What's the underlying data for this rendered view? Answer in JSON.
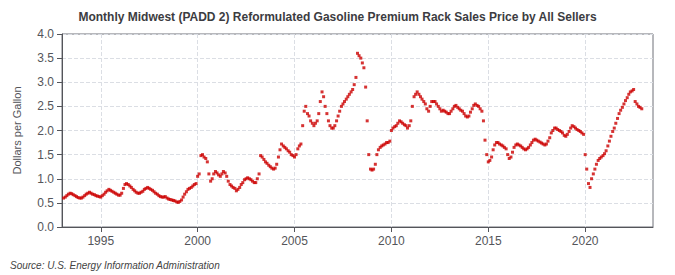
{
  "chart_data": {
    "type": "scatter",
    "title": "Monthly Midwest (PADD 2) Reformulated Gasoline Premium Rack Sales Price by All Sellers",
    "ylabel": "Dollars per Gallon",
    "annotation": "Source: U.S. Energy Information Administration",
    "color": "#CC0000",
    "marker": "square",
    "grid": true,
    "xlim": [
      1993.0,
      2023.5
    ],
    "ylim": [
      0.0,
      4.0
    ],
    "xticks": [
      1995,
      2000,
      2005,
      2010,
      2015,
      2020
    ],
    "yticks": [
      {
        "value": 0.0,
        "label": "0.0"
      },
      0.5,
      {
        "value": 1.0,
        "label": "1.0"
      },
      1.5,
      {
        "value": 2.0,
        "label": "2.0"
      },
      2.5,
      {
        "value": 3.0,
        "label": "3.0"
      },
      3.5,
      {
        "value": 4.0,
        "label": "4.0"
      }
    ],
    "x": [
      1993.08,
      1993.17,
      1993.25,
      1993.33,
      1993.42,
      1993.5,
      1993.58,
      1993.67,
      1993.75,
      1993.83,
      1993.92,
      1994.0,
      1994.08,
      1994.17,
      1994.25,
      1994.33,
      1994.42,
      1994.5,
      1994.58,
      1994.67,
      1994.75,
      1994.83,
      1994.92,
      1995.0,
      1995.08,
      1995.17,
      1995.25,
      1995.33,
      1995.42,
      1995.5,
      1995.58,
      1995.67,
      1995.75,
      1995.83,
      1995.92,
      1996.0,
      1996.08,
      1996.17,
      1996.25,
      1996.33,
      1996.42,
      1996.5,
      1996.58,
      1996.67,
      1996.75,
      1996.83,
      1996.92,
      1997.0,
      1997.08,
      1997.17,
      1997.25,
      1997.33,
      1997.42,
      1997.5,
      1997.58,
      1997.67,
      1997.75,
      1997.83,
      1997.92,
      1998.0,
      1998.08,
      1998.17,
      1998.25,
      1998.33,
      1998.42,
      1998.5,
      1998.58,
      1998.67,
      1998.75,
      1998.83,
      1998.92,
      1999.0,
      1999.08,
      1999.17,
      1999.25,
      1999.33,
      1999.42,
      1999.5,
      1999.58,
      1999.67,
      1999.75,
      1999.83,
      1999.92,
      2000.0,
      2000.08,
      2000.17,
      2000.25,
      2000.33,
      2000.42,
      2000.5,
      2000.58,
      2000.67,
      2000.75,
      2000.83,
      2000.92,
      2001.0,
      2001.08,
      2001.17,
      2001.25,
      2001.33,
      2001.42,
      2001.5,
      2001.58,
      2001.67,
      2001.75,
      2001.83,
      2001.92,
      2002.0,
      2002.08,
      2002.17,
      2002.25,
      2002.33,
      2002.42,
      2002.5,
      2002.58,
      2002.67,
      2002.75,
      2002.83,
      2002.92,
      2003.0,
      2003.08,
      2003.17,
      2003.25,
      2003.33,
      2003.42,
      2003.5,
      2003.58,
      2003.67,
      2003.75,
      2003.83,
      2003.92,
      2004.0,
      2004.08,
      2004.17,
      2004.25,
      2004.33,
      2004.42,
      2004.5,
      2004.58,
      2004.67,
      2004.75,
      2004.83,
      2004.92,
      2005.0,
      2005.08,
      2005.17,
      2005.25,
      2005.33,
      2005.42,
      2005.5,
      2005.58,
      2005.67,
      2005.75,
      2005.83,
      2005.92,
      2006.0,
      2006.08,
      2006.17,
      2006.25,
      2006.33,
      2006.42,
      2006.5,
      2006.58,
      2006.67,
      2006.75,
      2006.83,
      2006.92,
      2007.0,
      2007.08,
      2007.17,
      2007.25,
      2007.33,
      2007.42,
      2007.5,
      2007.58,
      2007.67,
      2007.75,
      2007.83,
      2007.92,
      2008.0,
      2008.08,
      2008.17,
      2008.25,
      2008.33,
      2008.42,
      2008.5,
      2008.58,
      2008.67,
      2008.75,
      2008.83,
      2008.92,
      2009.0,
      2009.08,
      2009.17,
      2009.25,
      2009.33,
      2009.42,
      2009.5,
      2009.58,
      2009.67,
      2009.75,
      2009.83,
      2009.92,
      2010.0,
      2010.08,
      2010.17,
      2010.25,
      2010.33,
      2010.42,
      2010.5,
      2010.58,
      2010.67,
      2010.75,
      2010.83,
      2010.92,
      2011.0,
      2011.08,
      2011.17,
      2011.25,
      2011.33,
      2011.42,
      2011.5,
      2011.58,
      2011.67,
      2011.75,
      2011.83,
      2011.92,
      2012.0,
      2012.08,
      2012.17,
      2012.25,
      2012.33,
      2012.42,
      2012.5,
      2012.58,
      2012.67,
      2012.75,
      2012.83,
      2012.92,
      2013.0,
      2013.08,
      2013.17,
      2013.25,
      2013.33,
      2013.42,
      2013.5,
      2013.58,
      2013.67,
      2013.75,
      2013.83,
      2013.92,
      2014.0,
      2014.08,
      2014.17,
      2014.25,
      2014.33,
      2014.42,
      2014.5,
      2014.58,
      2014.67,
      2014.75,
      2014.83,
      2014.92,
      2015.0,
      2015.08,
      2015.17,
      2015.25,
      2015.33,
      2015.42,
      2015.5,
      2015.58,
      2015.67,
      2015.75,
      2015.83,
      2015.92,
      2016.0,
      2016.08,
      2016.17,
      2016.25,
      2016.33,
      2016.42,
      2016.5,
      2016.58,
      2016.67,
      2016.75,
      2016.83,
      2016.92,
      2017.0,
      2017.08,
      2017.17,
      2017.25,
      2017.33,
      2017.42,
      2017.5,
      2017.58,
      2017.67,
      2017.75,
      2017.83,
      2017.92,
      2018.0,
      2018.08,
      2018.17,
      2018.25,
      2018.33,
      2018.42,
      2018.5,
      2018.58,
      2018.67,
      2018.75,
      2018.83,
      2018.92,
      2019.0,
      2019.08,
      2019.17,
      2019.25,
      2019.33,
      2019.42,
      2019.5,
      2019.58,
      2019.67,
      2019.75,
      2019.83,
      2019.92,
      2020.0,
      2020.08,
      2020.17,
      2020.25,
      2020.33,
      2020.42,
      2020.5,
      2020.58,
      2020.67,
      2020.75,
      2020.83,
      2020.92,
      2021.0,
      2021.08,
      2021.17,
      2021.25,
      2021.33,
      2021.42,
      2021.5,
      2021.58,
      2021.67,
      2021.75,
      2021.83,
      2021.92,
      2022.0,
      2022.08,
      2022.17,
      2022.25,
      2022.33,
      2022.42,
      2022.5,
      2022.58,
      2022.67,
      2022.75,
      2022.83,
      2022.92
    ],
    "values": [
      0.6,
      0.62,
      0.65,
      0.68,
      0.7,
      0.69,
      0.67,
      0.65,
      0.63,
      0.61,
      0.6,
      0.6,
      0.62,
      0.65,
      0.68,
      0.7,
      0.72,
      0.7,
      0.68,
      0.67,
      0.65,
      0.64,
      0.63,
      0.62,
      0.65,
      0.68,
      0.72,
      0.75,
      0.78,
      0.76,
      0.74,
      0.72,
      0.7,
      0.68,
      0.66,
      0.66,
      0.7,
      0.8,
      0.88,
      0.9,
      0.88,
      0.85,
      0.82,
      0.78,
      0.75,
      0.72,
      0.7,
      0.7,
      0.72,
      0.74,
      0.78,
      0.8,
      0.82,
      0.8,
      0.78,
      0.76,
      0.73,
      0.7,
      0.68,
      0.65,
      0.63,
      0.62,
      0.62,
      0.63,
      0.6,
      0.58,
      0.57,
      0.56,
      0.55,
      0.54,
      0.52,
      0.51,
      0.53,
      0.56,
      0.62,
      0.68,
      0.73,
      0.78,
      0.8,
      0.82,
      0.85,
      0.88,
      0.9,
      1.05,
      1.1,
      1.48,
      1.5,
      1.45,
      1.42,
      1.35,
      1.1,
      0.95,
      1.0,
      1.1,
      1.15,
      1.12,
      1.08,
      1.05,
      1.1,
      1.15,
      1.12,
      1.05,
      0.95,
      0.88,
      0.85,
      0.82,
      0.8,
      0.75,
      0.78,
      0.82,
      0.88,
      0.92,
      0.98,
      1.0,
      1.02,
      1.0,
      0.98,
      0.95,
      0.92,
      0.92,
      1.0,
      1.1,
      1.48,
      1.45,
      1.4,
      1.35,
      1.32,
      1.28,
      1.25,
      1.22,
      1.2,
      1.22,
      1.3,
      1.45,
      1.6,
      1.72,
      1.68,
      1.65,
      1.62,
      1.58,
      1.55,
      1.5,
      1.48,
      1.45,
      1.5,
      1.62,
      1.68,
      1.72,
      2.1,
      2.4,
      2.5,
      2.35,
      2.3,
      2.2,
      2.15,
      2.1,
      2.15,
      2.2,
      2.35,
      2.6,
      2.8,
      2.7,
      2.5,
      2.35,
      2.2,
      2.1,
      2.05,
      2.05,
      2.1,
      2.2,
      2.3,
      2.4,
      2.5,
      2.55,
      2.6,
      2.65,
      2.7,
      2.75,
      2.8,
      2.85,
      2.95,
      3.1,
      3.6,
      3.55,
      3.5,
      3.4,
      3.3,
      2.9,
      2.2,
      1.5,
      1.2,
      1.18,
      1.2,
      1.3,
      1.5,
      1.6,
      1.65,
      1.68,
      1.7,
      1.72,
      1.75,
      1.75,
      1.78,
      2.0,
      2.05,
      2.08,
      2.1,
      2.15,
      2.2,
      2.18,
      2.15,
      2.12,
      2.1,
      2.05,
      2.1,
      2.2,
      2.5,
      2.7,
      2.75,
      2.8,
      2.75,
      2.7,
      2.65,
      2.6,
      2.55,
      2.45,
      2.4,
      2.5,
      2.6,
      2.6,
      2.6,
      2.55,
      2.5,
      2.45,
      2.4,
      2.42,
      2.4,
      2.38,
      2.35,
      2.35,
      2.4,
      2.45,
      2.5,
      2.52,
      2.48,
      2.45,
      2.42,
      2.4,
      2.35,
      2.3,
      2.28,
      2.3,
      2.38,
      2.45,
      2.52,
      2.55,
      2.52,
      2.5,
      2.45,
      2.4,
      2.2,
      1.8,
      1.5,
      1.35,
      1.38,
      1.45,
      1.6,
      1.7,
      1.75,
      1.75,
      1.72,
      1.7,
      1.68,
      1.65,
      1.62,
      1.5,
      1.42,
      1.45,
      1.55,
      1.65,
      1.7,
      1.72,
      1.7,
      1.68,
      1.65,
      1.62,
      1.6,
      1.62,
      1.65,
      1.7,
      1.75,
      1.8,
      1.82,
      1.8,
      1.78,
      1.76,
      1.74,
      1.72,
      1.7,
      1.72,
      1.78,
      1.85,
      1.95,
      2.0,
      2.05,
      2.05,
      2.02,
      2.0,
      1.98,
      1.95,
      1.9,
      1.88,
      1.92,
      1.98,
      2.05,
      2.1,
      2.08,
      2.05,
      2.02,
      2.0,
      1.98,
      1.95,
      1.92,
      1.5,
      1.2,
      0.9,
      0.82,
      1.0,
      1.1,
      1.2,
      1.3,
      1.38,
      1.42,
      1.45,
      1.48,
      1.52,
      1.58,
      1.68,
      1.78,
      1.88,
      1.98,
      2.05,
      2.15,
      2.25,
      2.35,
      2.42,
      2.48,
      2.55,
      2.62,
      2.68,
      2.75,
      2.8,
      2.82,
      2.85,
      2.6,
      2.55,
      2.5,
      2.48,
      2.45
    ]
  }
}
